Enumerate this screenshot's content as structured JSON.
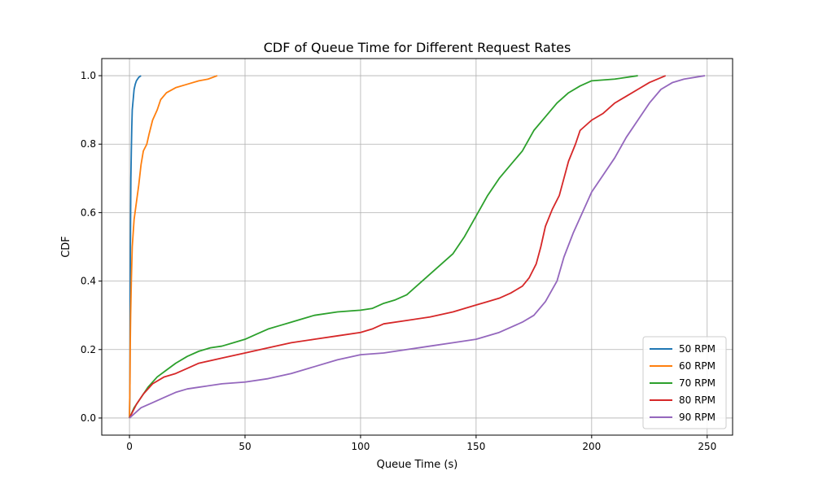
{
  "chart_data": {
    "type": "line",
    "title": "CDF of Queue Time for Different Request Rates",
    "xlabel": "Queue Time (s)",
    "ylabel": "CDF",
    "xlim": [
      -12,
      261
    ],
    "ylim": [
      -0.05,
      1.05
    ],
    "xticks": [
      0,
      50,
      100,
      150,
      200,
      250
    ],
    "yticks": [
      0.0,
      0.2,
      0.4,
      0.6,
      0.8,
      1.0
    ],
    "xtick_labels": [
      "0",
      "50",
      "100",
      "150",
      "200",
      "250"
    ],
    "ytick_labels": [
      "0.0",
      "0.2",
      "0.4",
      "0.6",
      "0.8",
      "1.0"
    ],
    "grid": true,
    "legend_position": "bottom-right",
    "series": [
      {
        "name": "50 RPM",
        "color": "#1f77b4",
        "points": [
          [
            0.0,
            0.0
          ],
          [
            0.2,
            0.1
          ],
          [
            0.3,
            0.3
          ],
          [
            0.4,
            0.5
          ],
          [
            0.5,
            0.6
          ],
          [
            0.6,
            0.7
          ],
          [
            0.8,
            0.78
          ],
          [
            1.0,
            0.85
          ],
          [
            1.2,
            0.9
          ],
          [
            1.6,
            0.93
          ],
          [
            2.0,
            0.96
          ],
          [
            2.5,
            0.975
          ],
          [
            3.0,
            0.985
          ],
          [
            4.0,
            0.995
          ],
          [
            5.0,
            1.0
          ]
        ]
      },
      {
        "name": "60 RPM",
        "color": "#ff7f0e",
        "points": [
          [
            0.0,
            0.0
          ],
          [
            0.2,
            0.1
          ],
          [
            0.3,
            0.2
          ],
          [
            0.5,
            0.3
          ],
          [
            0.8,
            0.4
          ],
          [
            1.2,
            0.5
          ],
          [
            2.0,
            0.58
          ],
          [
            3.0,
            0.63
          ],
          [
            4.0,
            0.68
          ],
          [
            5.0,
            0.74
          ],
          [
            6.0,
            0.78
          ],
          [
            7.5,
            0.8
          ],
          [
            8.5,
            0.83
          ],
          [
            10.0,
            0.87
          ],
          [
            12.0,
            0.9
          ],
          [
            13.5,
            0.93
          ],
          [
            16.0,
            0.95
          ],
          [
            20.0,
            0.965
          ],
          [
            25.0,
            0.975
          ],
          [
            30.0,
            0.985
          ],
          [
            34.0,
            0.99
          ],
          [
            38.0,
            1.0
          ]
        ]
      },
      {
        "name": "70 RPM",
        "color": "#2ca02c",
        "points": [
          [
            0,
            0.0
          ],
          [
            2,
            0.03
          ],
          [
            5,
            0.06
          ],
          [
            8,
            0.09
          ],
          [
            12,
            0.12
          ],
          [
            16,
            0.14
          ],
          [
            20,
            0.16
          ],
          [
            25,
            0.18
          ],
          [
            30,
            0.195
          ],
          [
            35,
            0.205
          ],
          [
            40,
            0.21
          ],
          [
            45,
            0.22
          ],
          [
            50,
            0.23
          ],
          [
            55,
            0.245
          ],
          [
            60,
            0.26
          ],
          [
            65,
            0.27
          ],
          [
            70,
            0.28
          ],
          [
            75,
            0.29
          ],
          [
            80,
            0.3
          ],
          [
            90,
            0.31
          ],
          [
            100,
            0.315
          ],
          [
            105,
            0.32
          ],
          [
            110,
            0.335
          ],
          [
            115,
            0.345
          ],
          [
            120,
            0.36
          ],
          [
            125,
            0.39
          ],
          [
            130,
            0.42
          ],
          [
            135,
            0.45
          ],
          [
            140,
            0.48
          ],
          [
            145,
            0.53
          ],
          [
            150,
            0.59
          ],
          [
            155,
            0.65
          ],
          [
            160,
            0.7
          ],
          [
            165,
            0.74
          ],
          [
            170,
            0.78
          ],
          [
            175,
            0.84
          ],
          [
            180,
            0.88
          ],
          [
            185,
            0.92
          ],
          [
            190,
            0.95
          ],
          [
            195,
            0.97
          ],
          [
            200,
            0.985
          ],
          [
            210,
            0.99
          ],
          [
            220,
            1.0
          ]
        ]
      },
      {
        "name": "80 RPM",
        "color": "#d62728",
        "points": [
          [
            0,
            0.0
          ],
          [
            3,
            0.04
          ],
          [
            6,
            0.07
          ],
          [
            10,
            0.1
          ],
          [
            15,
            0.12
          ],
          [
            20,
            0.13
          ],
          [
            25,
            0.145
          ],
          [
            30,
            0.16
          ],
          [
            40,
            0.175
          ],
          [
            50,
            0.19
          ],
          [
            60,
            0.205
          ],
          [
            70,
            0.22
          ],
          [
            80,
            0.23
          ],
          [
            90,
            0.24
          ],
          [
            100,
            0.25
          ],
          [
            105,
            0.26
          ],
          [
            110,
            0.275
          ],
          [
            120,
            0.285
          ],
          [
            130,
            0.295
          ],
          [
            140,
            0.31
          ],
          [
            145,
            0.32
          ],
          [
            150,
            0.33
          ],
          [
            155,
            0.34
          ],
          [
            160,
            0.35
          ],
          [
            165,
            0.365
          ],
          [
            170,
            0.385
          ],
          [
            173,
            0.41
          ],
          [
            176,
            0.45
          ],
          [
            178,
            0.5
          ],
          [
            180,
            0.56
          ],
          [
            183,
            0.61
          ],
          [
            186,
            0.65
          ],
          [
            188,
            0.7
          ],
          [
            190,
            0.75
          ],
          [
            193,
            0.8
          ],
          [
            195,
            0.84
          ],
          [
            200,
            0.87
          ],
          [
            205,
            0.89
          ],
          [
            210,
            0.92
          ],
          [
            215,
            0.94
          ],
          [
            220,
            0.96
          ],
          [
            225,
            0.98
          ],
          [
            232,
            1.0
          ]
        ]
      },
      {
        "name": "90 RPM",
        "color": "#9467bd",
        "points": [
          [
            0,
            0.0
          ],
          [
            5,
            0.03
          ],
          [
            10,
            0.045
          ],
          [
            15,
            0.06
          ],
          [
            20,
            0.075
          ],
          [
            25,
            0.085
          ],
          [
            30,
            0.09
          ],
          [
            40,
            0.1
          ],
          [
            50,
            0.105
          ],
          [
            60,
            0.115
          ],
          [
            70,
            0.13
          ],
          [
            80,
            0.15
          ],
          [
            90,
            0.17
          ],
          [
            100,
            0.185
          ],
          [
            110,
            0.19
          ],
          [
            120,
            0.2
          ],
          [
            130,
            0.21
          ],
          [
            140,
            0.22
          ],
          [
            150,
            0.23
          ],
          [
            160,
            0.25
          ],
          [
            170,
            0.28
          ],
          [
            175,
            0.3
          ],
          [
            180,
            0.34
          ],
          [
            185,
            0.4
          ],
          [
            188,
            0.47
          ],
          [
            192,
            0.54
          ],
          [
            196,
            0.6
          ],
          [
            200,
            0.66
          ],
          [
            205,
            0.71
          ],
          [
            210,
            0.76
          ],
          [
            215,
            0.82
          ],
          [
            220,
            0.87
          ],
          [
            225,
            0.92
          ],
          [
            230,
            0.96
          ],
          [
            235,
            0.98
          ],
          [
            240,
            0.99
          ],
          [
            249,
            1.0
          ]
        ]
      }
    ]
  }
}
